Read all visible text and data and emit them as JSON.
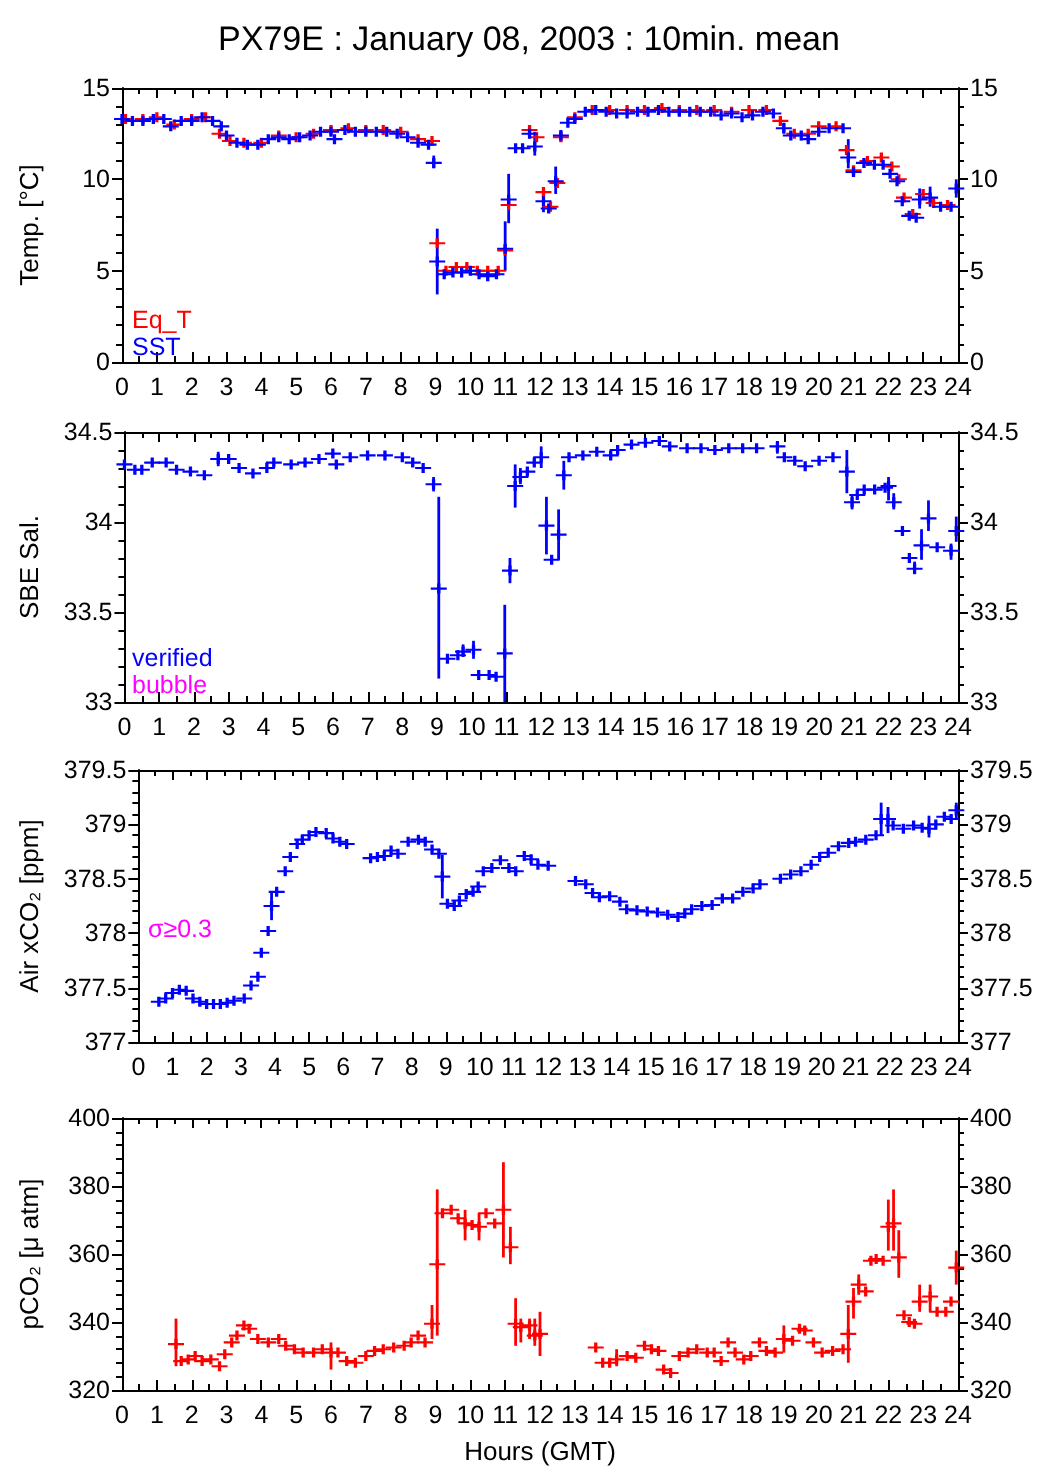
{
  "chart_data": [
    {
      "type": "scatter",
      "title": "PX79E : January 08, 2003 : 10min. mean",
      "ylabel": "Temp. [°C]",
      "xlim": [
        0,
        24
      ],
      "xticks": [
        0,
        1,
        2,
        3,
        4,
        5,
        6,
        7,
        8,
        9,
        10,
        11,
        12,
        13,
        14,
        15,
        16,
        17,
        18,
        19,
        20,
        21,
        22,
        23,
        24
      ],
      "ylim": [
        0,
        15
      ],
      "yticks": [
        0,
        5,
        10,
        15
      ],
      "y2lim": [
        0,
        15
      ],
      "y2ticks": [
        0,
        5,
        10,
        15
      ],
      "marker": "cross",
      "legend": "bottom left",
      "series": [
        {
          "name": "Eq_T",
          "color": "#ff0000",
          "x": [
            0.1,
            0.6,
            1.0,
            1.5,
            2.0,
            2.4,
            2.8,
            3.1,
            3.5,
            4.0,
            4.5,
            5.0,
            5.5,
            6.0,
            6.5,
            7.0,
            7.5,
            8.0,
            8.5,
            8.9,
            9.05,
            9.3,
            9.6,
            9.9,
            10.2,
            10.5,
            10.8,
            11.0,
            11.1,
            11.7,
            11.9,
            12.1,
            12.3,
            12.5,
            12.6,
            13.0,
            13.5,
            14.0,
            14.5,
            15.0,
            15.5,
            16.0,
            16.5,
            17.0,
            17.5,
            18.0,
            18.5,
            18.9,
            19.3,
            19.7,
            20.0,
            20.5,
            20.8,
            21.0,
            21.4,
            21.8,
            22.1,
            22.3,
            22.45,
            22.7,
            23.0,
            23.3,
            23.7
          ],
          "values": [
            13.3,
            13.3,
            13.4,
            13.0,
            13.3,
            13.4,
            12.5,
            12.1,
            12.0,
            12.0,
            12.4,
            12.3,
            12.5,
            12.7,
            12.8,
            12.7,
            12.7,
            12.6,
            12.2,
            12.1,
            6.5,
            5.0,
            5.2,
            5.2,
            5.0,
            5.0,
            5.0,
            6.1,
            8.6,
            12.7,
            12.3,
            9.3,
            8.5,
            9.8,
            12.3,
            13.4,
            13.8,
            13.8,
            13.8,
            13.8,
            13.9,
            13.8,
            13.8,
            13.8,
            13.7,
            13.8,
            13.8,
            13.2,
            12.5,
            12.5,
            12.9,
            12.9,
            11.6,
            10.5,
            11.0,
            11.2,
            10.7,
            10.0,
            9.0,
            8.1,
            9.2,
            8.7,
            8.6
          ]
        },
        {
          "name": "SST",
          "color": "#0000ff",
          "x": [
            0,
            0.3,
            0.6,
            0.9,
            1.2,
            1.4,
            1.7,
            2.0,
            2.3,
            2.6,
            2.85,
            3.0,
            3.3,
            3.6,
            3.9,
            4.2,
            4.5,
            4.8,
            5.1,
            5.4,
            5.7,
            6.0,
            6.1,
            6.4,
            6.7,
            7.0,
            7.3,
            7.6,
            7.9,
            8.2,
            8.5,
            8.8,
            8.95,
            9.05,
            9.25,
            9.5,
            9.75,
            10.0,
            10.25,
            10.5,
            10.75,
            11.0,
            11.1,
            11.3,
            11.5,
            11.7,
            11.85,
            12.1,
            12.25,
            12.45,
            12.6,
            12.8,
            13.0,
            13.3,
            13.6,
            13.9,
            14.2,
            14.5,
            14.8,
            15.1,
            15.4,
            15.7,
            16.0,
            16.3,
            16.6,
            16.9,
            17.2,
            17.5,
            17.8,
            18.1,
            18.4,
            18.7,
            19.0,
            19.2,
            19.5,
            19.7,
            20.0,
            20.3,
            20.7,
            20.85,
            21.0,
            21.3,
            21.6,
            21.85,
            22.05,
            22.25,
            22.4,
            22.6,
            22.8,
            22.9,
            23.2,
            23.5,
            23.8,
            23.95
          ],
          "values": [
            13.3,
            13.2,
            13.2,
            13.3,
            13.3,
            12.9,
            13.2,
            13.2,
            13.4,
            13.2,
            12.9,
            12.4,
            12.0,
            11.9,
            11.9,
            12.2,
            12.3,
            12.2,
            12.3,
            12.4,
            12.6,
            12.6,
            12.2,
            12.7,
            12.6,
            12.6,
            12.6,
            12.6,
            12.5,
            12.3,
            12.0,
            11.9,
            10.9,
            5.5,
            4.8,
            4.9,
            4.9,
            5.0,
            4.8,
            4.7,
            4.8,
            6.2,
            8.9,
            11.7,
            11.7,
            12.5,
            11.8,
            8.8,
            8.4,
            9.9,
            12.4,
            13.1,
            13.3,
            13.7,
            13.8,
            13.7,
            13.6,
            13.6,
            13.7,
            13.7,
            13.8,
            13.7,
            13.7,
            13.7,
            13.7,
            13.7,
            13.5,
            13.6,
            13.4,
            13.5,
            13.7,
            13.6,
            12.8,
            12.4,
            12.4,
            12.2,
            12.6,
            12.8,
            12.8,
            11.2,
            10.4,
            10.9,
            10.8,
            10.8,
            10.3,
            9.9,
            8.8,
            8.0,
            7.9,
            8.9,
            9.0,
            8.5,
            8.5,
            9.5
          ],
          "errors": [
            null,
            null,
            null,
            null,
            null,
            null,
            null,
            null,
            null,
            null,
            null,
            null,
            null,
            null,
            null,
            null,
            null,
            null,
            null,
            null,
            null,
            null,
            null,
            null,
            null,
            null,
            null,
            null,
            null,
            null,
            null,
            null,
            [
              10.6,
              11.3
            ],
            [
              3.7,
              7.3
            ],
            null,
            null,
            null,
            null,
            null,
            null,
            null,
            [
              5.0,
              7.7
            ],
            [
              7.6,
              10.3
            ],
            null,
            null,
            null,
            [
              11.3,
              12.6
            ],
            [
              8.2,
              9.5
            ],
            null,
            [
              9.2,
              10.7
            ],
            [
              12.1,
              12.7
            ],
            null,
            null,
            null,
            null,
            null,
            null,
            null,
            null,
            null,
            null,
            null,
            null,
            null,
            null,
            null,
            null,
            null,
            null,
            null,
            null,
            null,
            [
              12.5,
              13.1
            ],
            null,
            null,
            null,
            null,
            null,
            null,
            [
              10.6,
              12.2
            ],
            null,
            null,
            null,
            null,
            null,
            null,
            null,
            null,
            null,
            [
              8.4,
              9.5
            ],
            [
              8.5,
              9.6
            ],
            null,
            null,
            [
              9.0,
              10.0
            ]
          ]
        }
      ]
    },
    {
      "type": "scatter",
      "ylabel": "SBE Sal.",
      "xlim": [
        0,
        24
      ],
      "xticks": [
        0,
        1,
        2,
        3,
        4,
        5,
        6,
        7,
        8,
        9,
        10,
        11,
        12,
        13,
        14,
        15,
        16,
        17,
        18,
        19,
        20,
        21,
        22,
        23,
        24
      ],
      "ylim": [
        33,
        34.5
      ],
      "yticks": [
        33,
        33.5,
        34,
        34.5
      ],
      "y2lim": [
        33,
        34.5
      ],
      "y2ticks": [
        33,
        33.5,
        34,
        34.5
      ],
      "marker": "cross",
      "legend": "bottom left",
      "series": [
        {
          "name": "verified",
          "color": "#0000ff",
          "x": [
            0,
            0.3,
            0.5,
            0.8,
            1.2,
            1.5,
            1.9,
            2.3,
            2.7,
            3.0,
            3.3,
            3.7,
            4.1,
            4.3,
            4.8,
            5.2,
            5.6,
            6.0,
            6.1,
            6.5,
            7.0,
            7.5,
            8.0,
            8.3,
            8.6,
            8.9,
            9.05,
            9.3,
            9.6,
            9.75,
            10.05,
            10.2,
            10.5,
            10.7,
            10.95,
            11.1,
            11.25,
            11.4,
            11.6,
            11.8,
            12.0,
            12.15,
            12.3,
            12.5,
            12.65,
            12.8,
            13.2,
            13.6,
            14.0,
            14.2,
            14.6,
            15.0,
            15.4,
            15.7,
            16.2,
            16.6,
            17.0,
            17.4,
            17.8,
            18.2,
            18.8,
            19.0,
            19.3,
            19.6,
            20.0,
            20.4,
            20.8,
            20.95,
            21.1,
            21.3,
            21.6,
            21.9,
            22.0,
            22.15,
            22.4,
            22.6,
            22.75,
            22.95,
            23.15,
            23.4,
            23.8,
            23.95
          ],
          "values": [
            34.32,
            34.29,
            34.29,
            34.33,
            34.33,
            34.29,
            34.28,
            34.26,
            34.35,
            34.35,
            34.3,
            34.27,
            34.3,
            34.33,
            34.32,
            34.33,
            34.35,
            34.38,
            34.32,
            34.36,
            34.37,
            34.37,
            34.36,
            34.33,
            34.3,
            34.21,
            33.63,
            33.24,
            33.26,
            33.28,
            33.29,
            33.15,
            33.15,
            33.14,
            33.27,
            33.73,
            34.2,
            34.25,
            34.28,
            34.33,
            34.36,
            33.98,
            33.79,
            33.93,
            34.26,
            34.36,
            34.37,
            34.39,
            34.37,
            34.4,
            34.43,
            34.44,
            34.45,
            34.42,
            34.41,
            34.41,
            34.4,
            34.41,
            34.41,
            34.41,
            34.42,
            34.36,
            34.34,
            34.31,
            34.34,
            34.36,
            34.28,
            34.11,
            34.15,
            34.18,
            34.18,
            34.19,
            34.2,
            34.11,
            33.95,
            33.8,
            33.74,
            33.87,
            34.02,
            33.86,
            33.84,
            33.95
          ],
          "errors": [
            null,
            null,
            null,
            null,
            null,
            null,
            null,
            null,
            [
              34.31,
              34.39
            ],
            null,
            null,
            null,
            null,
            null,
            null,
            null,
            null,
            null,
            null,
            null,
            null,
            null,
            null,
            null,
            null,
            [
              34.17,
              34.25
            ],
            [
              33.13,
              34.14
            ],
            null,
            null,
            [
              33.25,
              33.32
            ],
            [
              33.24,
              33.34
            ],
            null,
            null,
            null,
            [
              33.0,
              33.54
            ],
            [
              33.66,
              33.8
            ],
            [
              34.08,
              34.32
            ],
            [
              34.21,
              34.3
            ],
            null,
            null,
            [
              34.3,
              34.42
            ],
            [
              33.82,
              34.14
            ],
            null,
            [
              33.79,
              34.07
            ],
            [
              34.18,
              34.34
            ],
            null,
            null,
            null,
            null,
            null,
            null,
            null,
            null,
            null,
            null,
            null,
            null,
            null,
            null,
            null,
            [
              34.38,
              34.45
            ],
            null,
            null,
            null,
            null,
            null,
            [
              34.16,
              34.4
            ],
            [
              34.07,
              34.15
            ],
            null,
            null,
            null,
            null,
            [
              34.12,
              34.25
            ],
            [
              34.07,
              34.16
            ],
            null,
            null,
            [
              33.71,
              33.78
            ],
            [
              33.79,
              33.96
            ],
            [
              33.95,
              34.12
            ],
            null,
            [
              33.79,
              33.88
            ],
            [
              33.89,
              34.03
            ]
          ]
        },
        {
          "name": "bubble",
          "color": "#ff00ff"
        }
      ]
    },
    {
      "type": "scatter",
      "ylabel": "Air xCO₂ [ppm]",
      "annotations": [
        "σ≥0.3"
      ],
      "xlim": [
        0,
        24
      ],
      "xticks": [
        0,
        1,
        2,
        3,
        4,
        5,
        6,
        7,
        8,
        9,
        10,
        11,
        12,
        13,
        14,
        15,
        16,
        17,
        18,
        19,
        20,
        21,
        22,
        23,
        24
      ],
      "ylim": [
        377,
        379.5
      ],
      "yticks": [
        377,
        377.5,
        378,
        378.5,
        379,
        379.5
      ],
      "y2lim": [
        377,
        379.5
      ],
      "y2ticks": [
        377,
        377.5,
        378,
        378.5,
        379,
        379.5
      ],
      "marker": "cross",
      "series": [
        {
          "color": "#0000ff",
          "x": [
            0.6,
            0.8,
            1.0,
            1.2,
            1.4,
            1.6,
            1.8,
            2.0,
            2.2,
            2.4,
            2.6,
            2.8,
            3.1,
            3.3,
            3.5,
            3.6,
            3.8,
            3.9,
            4.05,
            4.3,
            4.45,
            4.65,
            4.8,
            5.0,
            5.2,
            5.5,
            5.7,
            5.9,
            6.1,
            6.8,
            7.0,
            7.2,
            7.4,
            7.6,
            7.9,
            8.2,
            8.4,
            8.6,
            8.8,
            8.9,
            9.05,
            9.25,
            9.4,
            9.6,
            9.8,
            9.95,
            10.1,
            10.35,
            10.6,
            10.85,
            11.05,
            11.3,
            11.5,
            11.7,
            12.0,
            12.8,
            13.1,
            13.3,
            13.5,
            13.8,
            14.1,
            14.3,
            14.6,
            14.9,
            15.2,
            15.5,
            15.8,
            16.0,
            16.2,
            16.5,
            16.8,
            17.1,
            17.4,
            17.7,
            18.0,
            18.2,
            18.8,
            19.1,
            19.4,
            19.7,
            19.95,
            20.2,
            20.5,
            20.8,
            21.0,
            21.3,
            21.6,
            21.75,
            21.95,
            22.1,
            22.4,
            22.7,
            22.95,
            23.15,
            23.35,
            23.6,
            23.8,
            23.95
          ],
          "values": [
            377.37,
            377.4,
            377.45,
            377.48,
            377.47,
            377.4,
            377.37,
            377.35,
            377.35,
            377.35,
            377.36,
            377.38,
            377.4,
            377.52,
            377.6,
            377.82,
            378.02,
            378.25,
            378.38,
            378.57,
            378.7,
            378.82,
            378.86,
            378.9,
            378.93,
            378.92,
            378.87,
            378.84,
            378.82,
            378.69,
            378.7,
            378.71,
            378.76,
            378.73,
            378.84,
            378.86,
            378.84,
            378.77,
            378.73,
            378.52,
            378.27,
            378.25,
            378.3,
            378.36,
            378.38,
            378.43,
            378.57,
            378.6,
            378.67,
            378.6,
            378.57,
            378.71,
            378.68,
            378.63,
            378.62,
            378.48,
            378.45,
            378.37,
            378.33,
            378.34,
            378.29,
            378.22,
            378.21,
            378.2,
            378.19,
            378.17,
            378.15,
            378.18,
            378.22,
            378.25,
            378.26,
            378.32,
            378.32,
            378.38,
            378.41,
            378.45,
            378.5,
            378.54,
            378.57,
            378.63,
            378.7,
            378.74,
            378.8,
            378.83,
            378.84,
            378.86,
            378.9,
            379.05,
            379.05,
            378.99,
            378.96,
            378.99,
            378.97,
            378.96,
            379.0,
            379.07,
            379.05,
            379.13
          ],
          "errors": [
            null,
            null,
            null,
            null,
            null,
            null,
            null,
            null,
            null,
            null,
            null,
            null,
            null,
            null,
            null,
            null,
            null,
            [
              378.12,
              378.38
            ],
            null,
            null,
            null,
            null,
            null,
            null,
            null,
            null,
            null,
            null,
            null,
            null,
            null,
            null,
            null,
            null,
            null,
            null,
            null,
            null,
            null,
            [
              378.32,
              378.72
            ],
            null,
            null,
            null,
            null,
            null,
            null,
            null,
            null,
            null,
            null,
            null,
            null,
            null,
            null,
            null,
            null,
            null,
            null,
            null,
            null,
            null,
            null,
            null,
            null,
            null,
            null,
            null,
            null,
            null,
            null,
            null,
            null,
            null,
            null,
            null,
            null,
            null,
            null,
            null,
            null,
            null,
            null,
            null,
            null,
            null,
            null,
            null,
            [
              378.9,
              379.2
            ],
            [
              378.92,
              379.16
            ],
            null,
            null,
            null,
            null,
            [
              378.88,
              379.08
            ],
            null,
            null,
            null,
            [
              379.05,
              379.2
            ]
          ]
        }
      ]
    },
    {
      "type": "scatter",
      "xlabel": "Hours (GMT)",
      "ylabel": "pCO₂ [μ atm]",
      "xlim": [
        0,
        24
      ],
      "xticks": [
        0,
        1,
        2,
        3,
        4,
        5,
        6,
        7,
        8,
        9,
        10,
        11,
        12,
        13,
        14,
        15,
        16,
        17,
        18,
        19,
        20,
        21,
        22,
        23,
        24
      ],
      "ylim": [
        320,
        400
      ],
      "yticks": [
        320,
        340,
        360,
        380,
        400
      ],
      "y2lim": [
        320,
        400
      ],
      "y2ticks": [
        320,
        340,
        360,
        380,
        400
      ],
      "marker": "cross",
      "series": [
        {
          "color": "#ff0000",
          "x": [
            1.55,
            1.7,
            1.9,
            2.1,
            2.3,
            2.55,
            2.8,
            2.95,
            3.15,
            3.3,
            3.5,
            3.65,
            3.9,
            4.2,
            4.5,
            4.7,
            4.95,
            5.2,
            5.5,
            5.75,
            6.0,
            6.2,
            6.45,
            6.7,
            7.0,
            7.25,
            7.5,
            7.8,
            8.1,
            8.3,
            8.5,
            8.7,
            8.9,
            9.05,
            9.2,
            9.45,
            9.65,
            9.85,
            10.05,
            10.25,
            10.45,
            10.7,
            10.95,
            11.15,
            11.3,
            11.45,
            11.7,
            11.85,
            12.0,
            13.6,
            13.8,
            14.0,
            14.2,
            14.5,
            14.75,
            15.0,
            15.2,
            15.4,
            15.55,
            15.75,
            16.0,
            16.25,
            16.5,
            16.8,
            17.0,
            17.2,
            17.4,
            17.6,
            17.85,
            18.05,
            18.3,
            18.5,
            18.75,
            19.0,
            19.25,
            19.45,
            19.6,
            19.85,
            20.1,
            20.4,
            20.7,
            20.85,
            21.0,
            21.15,
            21.35,
            21.5,
            21.65,
            21.85,
            22.0,
            22.15,
            22.3,
            22.45,
            22.6,
            22.75,
            22.9,
            23.2,
            23.4,
            23.65,
            23.8,
            23.95
          ],
          "values": [
            333.5,
            328.5,
            329,
            330,
            328.5,
            329,
            327,
            330.5,
            334,
            336,
            339,
            338,
            335,
            334,
            335,
            333,
            332,
            331,
            331,
            332,
            331,
            331,
            328.5,
            328,
            330,
            331.5,
            332,
            332.5,
            333,
            334,
            336,
            334,
            339.5,
            357,
            372,
            373,
            370.5,
            369,
            368.5,
            368,
            372,
            369,
            373,
            362,
            339.5,
            338.5,
            339,
            336,
            336.5,
            332.5,
            328,
            328,
            329,
            330,
            329.5,
            333,
            332,
            331.5,
            326,
            325,
            330,
            331,
            332,
            331,
            331,
            328.5,
            334,
            331,
            329,
            330,
            334,
            331.5,
            331,
            335,
            334.5,
            338,
            337.5,
            334,
            331,
            331.5,
            332,
            336.5,
            346,
            351,
            349,
            358,
            358.5,
            358,
            368,
            369,
            359,
            342,
            340,
            339.5,
            346,
            347.5,
            343,
            343,
            346,
            356
          ],
          "errors": [
            [
              327,
              341
            ],
            null,
            null,
            null,
            null,
            null,
            null,
            null,
            null,
            null,
            null,
            null,
            null,
            null,
            null,
            null,
            null,
            null,
            null,
            null,
            [
              326,
              334
            ],
            null,
            null,
            null,
            null,
            null,
            null,
            null,
            null,
            null,
            null,
            null,
            [
              335,
              345
            ],
            [
              336,
              379
            ],
            null,
            null,
            null,
            [
              364,
              373
            ],
            null,
            [
              364,
              372
            ],
            null,
            null,
            [
              359,
              387
            ],
            [
              357,
              368
            ],
            [
              333,
              347
            ],
            [
              334,
              341
            ],
            [
              335,
              341
            ],
            [
              333,
              341
            ],
            [
              330,
              343
            ],
            null,
            null,
            null,
            [
              327,
              332
            ],
            null,
            null,
            null,
            null,
            null,
            null,
            null,
            null,
            null,
            null,
            null,
            null,
            null,
            null,
            null,
            null,
            null,
            null,
            null,
            null,
            [
              331,
              339
            ],
            null,
            null,
            null,
            null,
            null,
            null,
            null,
            [
              328,
              345
            ],
            [
              341,
              350
            ],
            [
              348,
              354
            ],
            null,
            null,
            null,
            null,
            [
              361,
              376
            ],
            [
              361,
              379
            ],
            [
              353,
              367
            ],
            null,
            null,
            null,
            [
              343,
              351
            ],
            [
              343,
              351
            ],
            null,
            null,
            null,
            [
              351,
              361
            ]
          ]
        }
      ]
    }
  ]
}
